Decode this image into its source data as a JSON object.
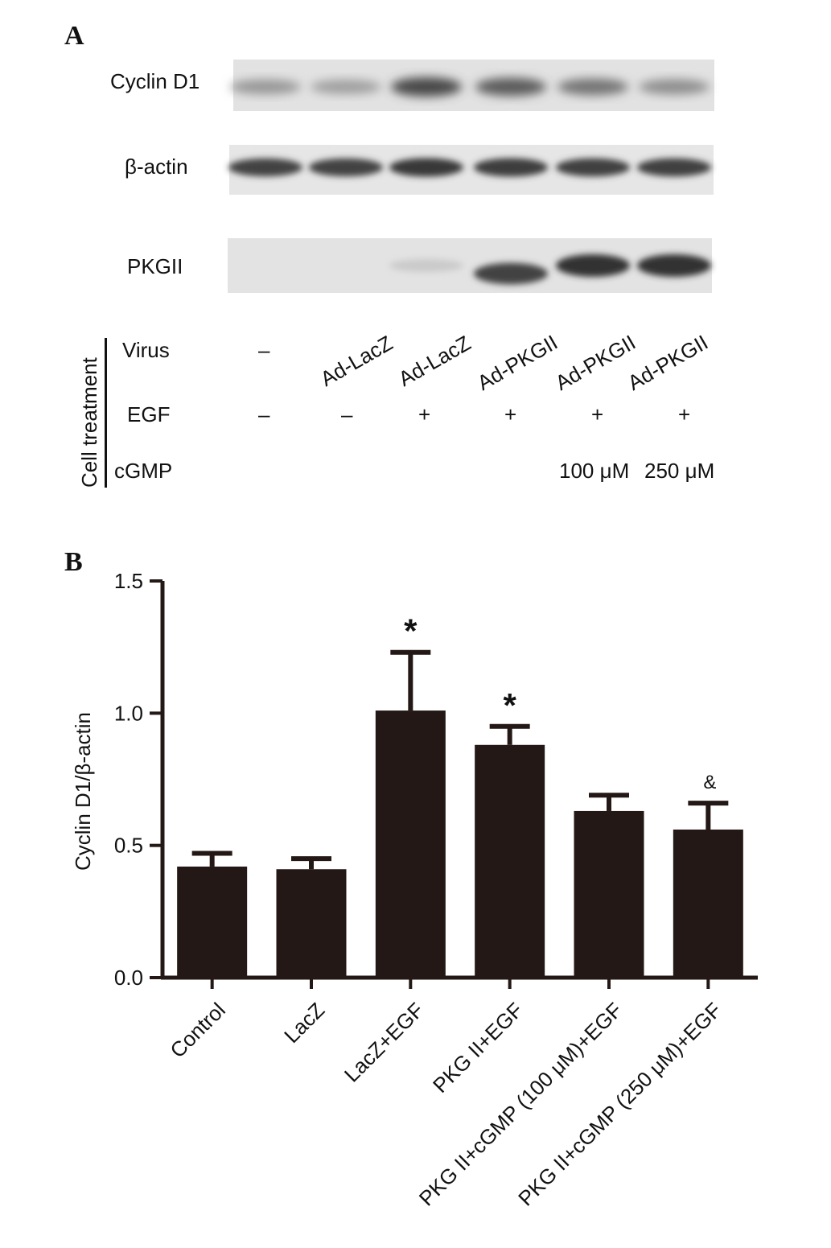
{
  "panel_a": {
    "label": "A",
    "blots": [
      {
        "name": "Cyclin D1",
        "intensities": [
          0.35,
          0.3,
          0.8,
          0.7,
          0.55,
          0.4
        ]
      },
      {
        "name": "β-actin",
        "intensities": [
          0.85,
          0.85,
          0.9,
          0.88,
          0.86,
          0.86
        ]
      },
      {
        "name": "PKGII",
        "intensities": [
          0.0,
          0.0,
          0.05,
          0.85,
          0.95,
          0.95
        ]
      }
    ],
    "treatment_title": "Cell treatment",
    "rows": [
      {
        "label": "Virus",
        "values": [
          "–",
          "Ad-LacZ",
          "Ad-LacZ",
          "Ad-PKGII",
          "Ad-PKGII",
          "Ad-PKGII"
        ]
      },
      {
        "label": "EGF",
        "values": [
          "–",
          "–",
          "+",
          "+",
          "+",
          "+"
        ]
      },
      {
        "label": "cGMP",
        "values": [
          "",
          "",
          "",
          "",
          "100 μM",
          "250 μM"
        ]
      }
    ]
  },
  "panel_b": {
    "label": "B"
  },
  "chart_data": {
    "type": "bar",
    "title": "",
    "xlabel": "",
    "ylabel": "Cyclin D1/β-actin",
    "categories": [
      "Control",
      "LacZ",
      "LacZ+EGF",
      "PKG II+EGF",
      "PKG II+cGMP (100 μM)+EGF",
      "PKG II+cGMP (250 μM)+EGF"
    ],
    "values": [
      0.42,
      0.41,
      1.01,
      0.88,
      0.63,
      0.56
    ],
    "errors": [
      0.05,
      0.04,
      0.22,
      0.07,
      0.06,
      0.1
    ],
    "annotations": [
      "",
      "",
      "*",
      "*",
      "",
      "&"
    ],
    "ylim": [
      0,
      1.5
    ],
    "yticks": [
      0.0,
      0.5,
      1.0,
      1.5
    ],
    "ytick_labels": [
      "0.0",
      "0.5",
      "1.0",
      "1.5"
    ],
    "bar_color": "#231815",
    "grid": false,
    "legend": "none"
  }
}
